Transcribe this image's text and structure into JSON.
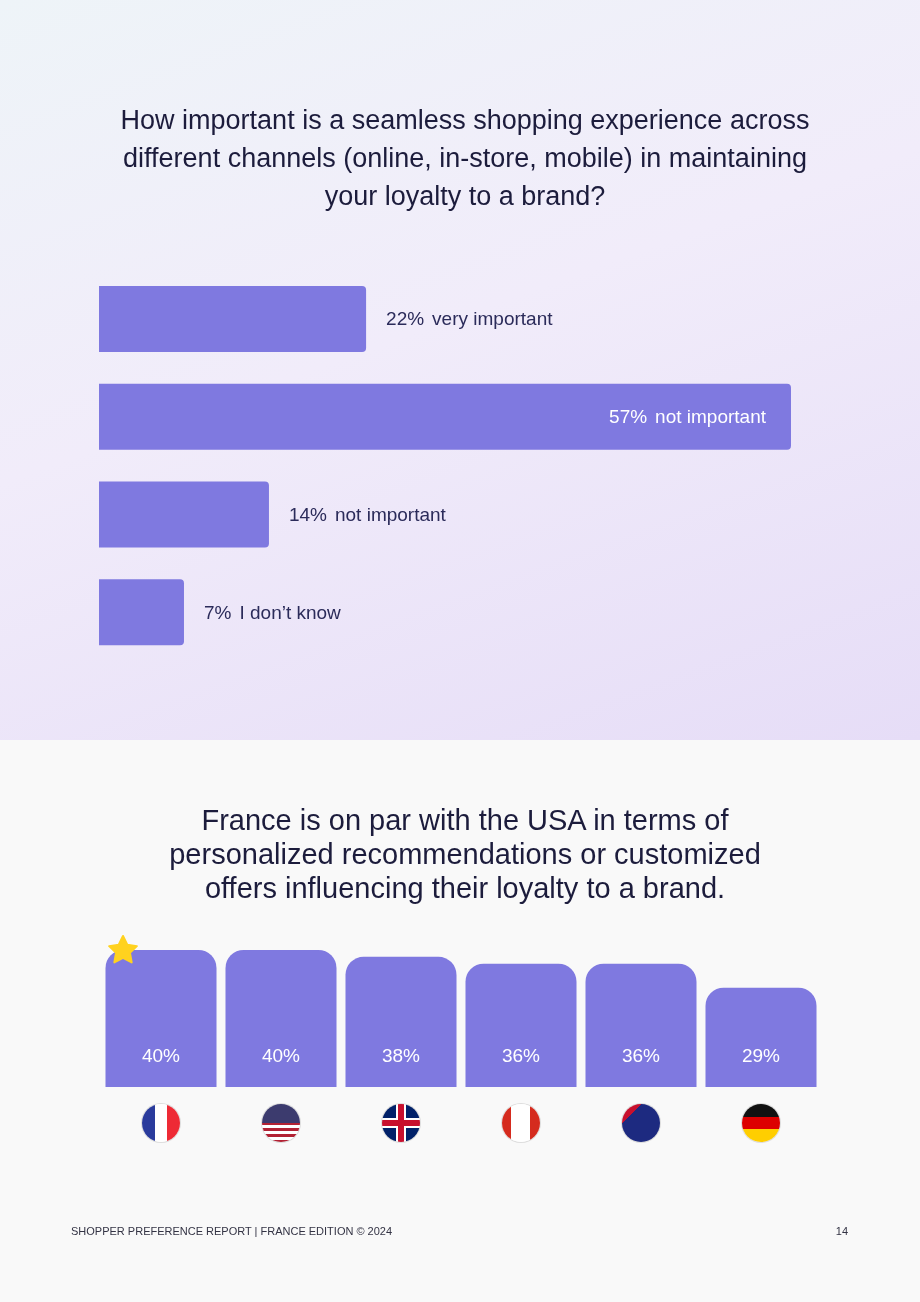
{
  "chart_data": [
    {
      "type": "bar",
      "orientation": "horizontal",
      "title": "How important is a seamless shopping experience across\ndifferent channels (online, in-store, mobile) in maintaining\nyour loyalty to a brand?",
      "categories": [
        "very important",
        "not important",
        "not important",
        "I don’t know"
      ],
      "values": [
        22,
        57,
        14,
        7
      ],
      "value_labels": [
        "22%",
        "57%",
        "14%",
        "7%"
      ],
      "color": "#7f79e0"
    },
    {
      "type": "bar",
      "title": "France is on par with the USA in terms of\npersonalized recommendations or customized\noffers influencing their loyalty to a brand.",
      "categories": [
        null,
        null,
        null,
        null,
        null,
        null
      ],
      "values": [
        40,
        40,
        38,
        36,
        36,
        29
      ],
      "value_labels": [
        "40%",
        "40%",
        "38%",
        "36%",
        "36%",
        "29%"
      ],
      "color": "#7f79e0",
      "annotations": [
        "SHOPPER PREFERENCE REPORT | FRANCE EDITION © 2024",
        "14"
      ]
    }
  ]
}
